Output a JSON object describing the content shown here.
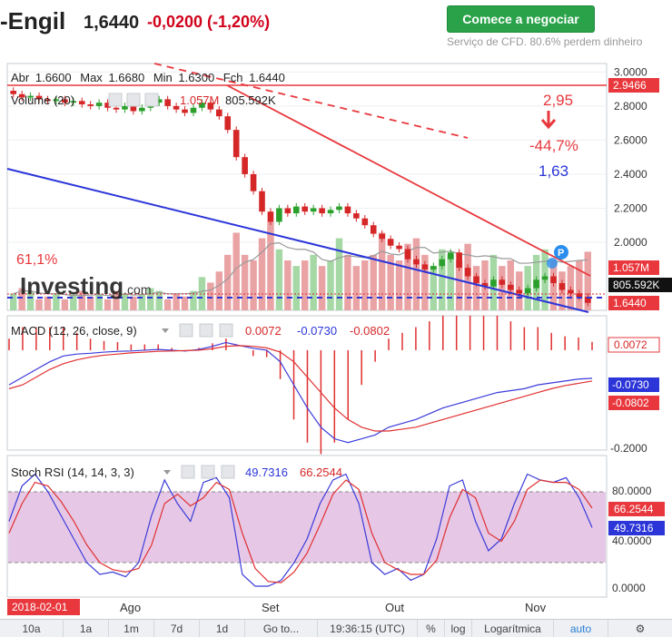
{
  "header": {
    "ticker": "-Engil",
    "price": "1,6440",
    "change": "-0,0200 (-1,20%)",
    "cta_label": "Comece a negociar",
    "disclaimer": "Serviço de CFD. 80.6% perdem dinheiro"
  },
  "main_panel": {
    "ohlc_prefix": "Abr",
    "open": "1.6600",
    "max_label": "Max",
    "max": "1.6680",
    "min_label": "Min",
    "min": "1.6300",
    "close_label": "Fch",
    "close": "1.6440",
    "volume_label": "Volume (20)",
    "volume_value": "1.057M",
    "volume_ma_value": "805.592K",
    "watermark": "Investing",
    "watermark_suffix": ".com",
    "annotation_fib": "61,1%",
    "annotation_target_high": "2,95",
    "annotation_pct": "-44,7%",
    "annotation_target_low": "1,63",
    "marker_label": "P",
    "price_ticks": [
      "3.0000",
      "2.8000",
      "2.6000",
      "2.4000",
      "2.2000",
      "2.0000"
    ],
    "price_tick_values": [
      3.0,
      2.8,
      2.6,
      2.4,
      2.2,
      2.0
    ],
    "badge_resistance": "2.9466",
    "badge_volume": "1.057M",
    "badge_volume_ma": "805.592K",
    "badge_price": "1.6440"
  },
  "macd_panel": {
    "label": "MACD (12, 26, close, 9)",
    "v1": "0.0072",
    "v2": "-0.0730",
    "v3": "-0.0802",
    "badge_hist": "0.0072",
    "badge_macd": "-0.0730",
    "badge_signal": "-0.0802",
    "tick_bottom": "-0.2000"
  },
  "rsi_panel": {
    "label": "Stoch RSI (14, 14, 3, 3)",
    "v1": "49.7316",
    "v2": "66.2544",
    "ticks": [
      "80.0000",
      "40.0000",
      "0.0000"
    ],
    "badge_d": "66.2544",
    "badge_k": "49.7316"
  },
  "x_axis": {
    "date_badge": "2018-02-01",
    "labels": [
      "Ago",
      "Set",
      "Out",
      "Nov"
    ]
  },
  "toolbar": {
    "items": [
      "10a",
      "1a",
      "1m",
      "7d",
      "1d",
      "Go to...",
      "19:36:15 (UTC)",
      "%",
      "log",
      "Logarítmica",
      "auto"
    ]
  },
  "colors": {
    "bull": "#2ca02c",
    "bear": "#d62728",
    "macd_line": "#3b3bd9",
    "signal_line": "#e03030",
    "rsi_band": "#e6c8e6",
    "trend_blue": "#2b35d8",
    "trend_red": "#e8383d"
  },
  "chart_data": [
    {
      "type": "candlestick",
      "title": "",
      "y_range": [
        1.6,
        3.05
      ],
      "x_labels": [
        "Ago",
        "Set",
        "Out",
        "Nov"
      ],
      "close": [
        2.87,
        2.85,
        2.86,
        2.84,
        2.83,
        2.84,
        2.82,
        2.83,
        2.81,
        2.8,
        2.82,
        2.79,
        2.78,
        2.8,
        2.77,
        2.79,
        2.82,
        2.84,
        2.8,
        2.78,
        2.76,
        2.79,
        2.82,
        2.78,
        2.74,
        2.66,
        2.5,
        2.4,
        2.3,
        2.18,
        2.12,
        2.2,
        2.17,
        2.21,
        2.18,
        2.2,
        2.17,
        2.19,
        2.21,
        2.17,
        2.14,
        2.1,
        2.05,
        2.02,
        1.98,
        1.96,
        1.9,
        1.87,
        1.84,
        1.86,
        1.9,
        1.94,
        1.85,
        1.8,
        1.76,
        1.74,
        1.78,
        1.75,
        1.72,
        1.7,
        1.73,
        1.78,
        1.8,
        1.76,
        1.72,
        1.7,
        1.68,
        1.644
      ],
      "volume": [
        0.3,
        0.4,
        0.35,
        0.2,
        0.25,
        0.3,
        0.2,
        0.3,
        0.35,
        0.25,
        0.3,
        0.2,
        0.35,
        0.3,
        0.25,
        0.3,
        0.4,
        0.35,
        0.2,
        0.3,
        0.25,
        0.35,
        0.6,
        0.5,
        0.7,
        1.0,
        1.4,
        1.0,
        0.9,
        1.3,
        1.6,
        1.1,
        0.9,
        0.8,
        0.9,
        1.0,
        0.8,
        0.9,
        1.3,
        1.0,
        0.8,
        0.9,
        1.0,
        1.4,
        1.0,
        0.9,
        1.2,
        1.3,
        1.0,
        0.8,
        1.1,
        1.0,
        0.9,
        1.2,
        0.8,
        0.9,
        1.0,
        0.8,
        0.9,
        0.7,
        0.8,
        1.0,
        1.1,
        0.9,
        0.7,
        0.8,
        0.9,
        1.057
      ],
      "annotations": [
        "61,1%",
        "2,95",
        "-44,7%",
        "1,63"
      ],
      "resistance": 2.9466
    },
    {
      "type": "line",
      "title": "MACD (12, 26, close, 9)",
      "y_range": [
        -0.25,
        0.08
      ],
      "series": [
        {
          "name": "MACD",
          "values": [
            -0.09,
            -0.07,
            -0.05,
            -0.03,
            -0.015,
            -0.01,
            -0.008,
            -0.005,
            -0.003,
            -0.002,
            0.0,
            0.002,
            0.0,
            -0.002,
            0.002,
            0.01,
            0.02,
            0.012,
            0.005,
            0.0,
            -0.03,
            -0.09,
            -0.15,
            -0.2,
            -0.23,
            -0.24,
            -0.23,
            -0.22,
            -0.2,
            -0.19,
            -0.18,
            -0.165,
            -0.15,
            -0.14,
            -0.13,
            -0.12,
            -0.11,
            -0.105,
            -0.1,
            -0.09,
            -0.085,
            -0.08,
            -0.075,
            -0.073
          ]
        },
        {
          "name": "Signal",
          "values": [
            -0.1,
            -0.09,
            -0.07,
            -0.05,
            -0.035,
            -0.025,
            -0.018,
            -0.013,
            -0.01,
            -0.007,
            -0.005,
            -0.003,
            -0.002,
            -0.001,
            0.0,
            0.004,
            0.01,
            0.012,
            0.01,
            0.006,
            -0.005,
            -0.03,
            -0.07,
            -0.11,
            -0.15,
            -0.18,
            -0.2,
            -0.21,
            -0.21,
            -0.205,
            -0.2,
            -0.19,
            -0.18,
            -0.17,
            -0.16,
            -0.15,
            -0.14,
            -0.13,
            -0.12,
            -0.11,
            -0.1,
            -0.092,
            -0.086,
            -0.0802
          ]
        }
      ]
    },
    {
      "type": "line",
      "title": "Stoch RSI (14, 14, 3, 3)",
      "y_range": [
        0,
        100
      ],
      "series": [
        {
          "name": "K",
          "values": [
            55,
            85,
            95,
            80,
            60,
            40,
            20,
            10,
            12,
            8,
            20,
            60,
            90,
            70,
            55,
            88,
            92,
            75,
            10,
            0,
            0,
            5,
            20,
            40,
            70,
            90,
            95,
            70,
            20,
            10,
            15,
            5,
            10,
            40,
            85,
            90,
            55,
            30,
            40,
            70,
            95,
            90,
            88,
            92,
            75,
            49.73
          ]
        },
        {
          "name": "D",
          "values": [
            45,
            70,
            88,
            85,
            72,
            55,
            35,
            20,
            14,
            12,
            15,
            35,
            70,
            78,
            68,
            75,
            88,
            82,
            45,
            15,
            4,
            3,
            12,
            28,
            52,
            78,
            90,
            82,
            45,
            20,
            14,
            10,
            10,
            22,
            58,
            82,
            75,
            45,
            38,
            55,
            82,
            90,
            88,
            88,
            82,
            66.25
          ]
        }
      ]
    }
  ]
}
